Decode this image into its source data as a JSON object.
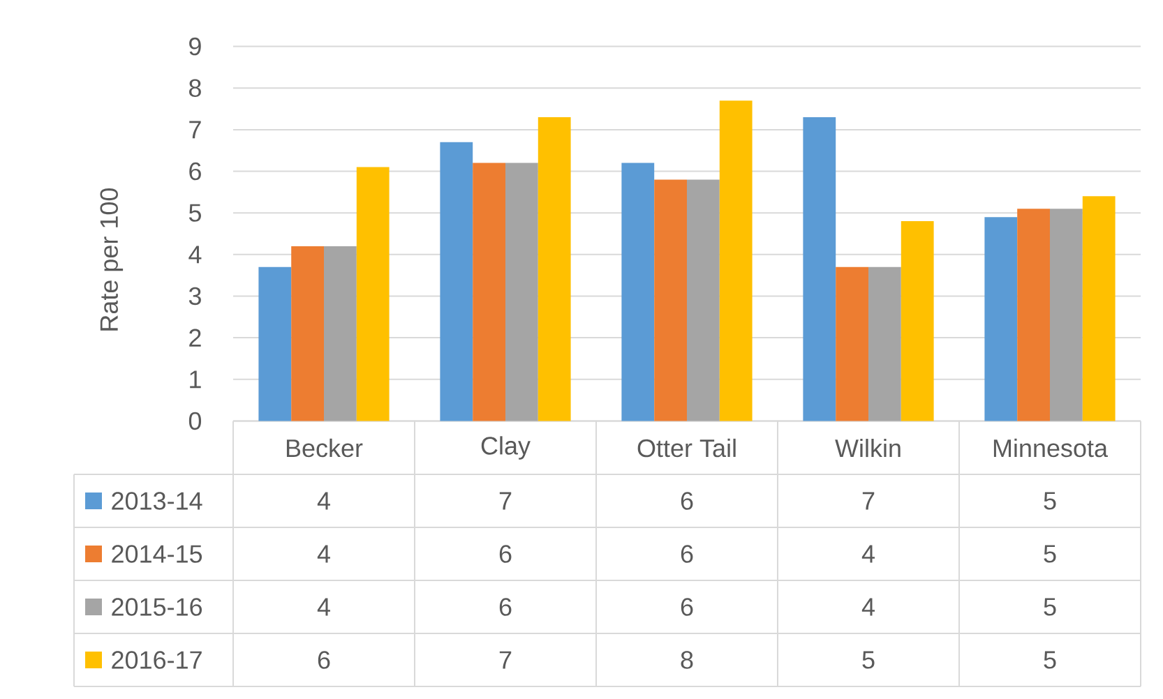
{
  "chart_data": {
    "type": "bar",
    "ylabel": "Rate per 100",
    "categories": [
      "Becker",
      "Clay",
      "Otter Tail",
      "Wilkin",
      "Minnesota"
    ],
    "series": [
      {
        "name": "2013-14",
        "color": "#5b9bd5",
        "values": [
          3.7,
          6.7,
          6.2,
          7.3,
          4.9
        ],
        "value_labels": [
          "4",
          "7",
          "6",
          "7",
          "5"
        ]
      },
      {
        "name": "2014-15",
        "color": "#ed7d31",
        "values": [
          4.2,
          6.2,
          5.8,
          3.7,
          5.1
        ],
        "value_labels": [
          "4",
          "6",
          "6",
          "4",
          "5"
        ]
      },
      {
        "name": "2015-16",
        "color": "#a5a5a5",
        "values": [
          4.2,
          6.2,
          5.8,
          3.7,
          5.1
        ],
        "value_labels": [
          "4",
          "6",
          "6",
          "4",
          "5"
        ]
      },
      {
        "name": "2016-17",
        "color": "#ffc000",
        "values": [
          6.1,
          7.3,
          7.7,
          4.8,
          5.4
        ],
        "value_labels": [
          "6",
          "7",
          "8",
          "5",
          "5"
        ]
      }
    ],
    "ylim": [
      0,
      9
    ],
    "yticks": [
      0,
      1,
      2,
      3,
      4,
      5,
      6,
      7,
      8,
      9
    ],
    "grid": "y",
    "legend": "bottom"
  }
}
